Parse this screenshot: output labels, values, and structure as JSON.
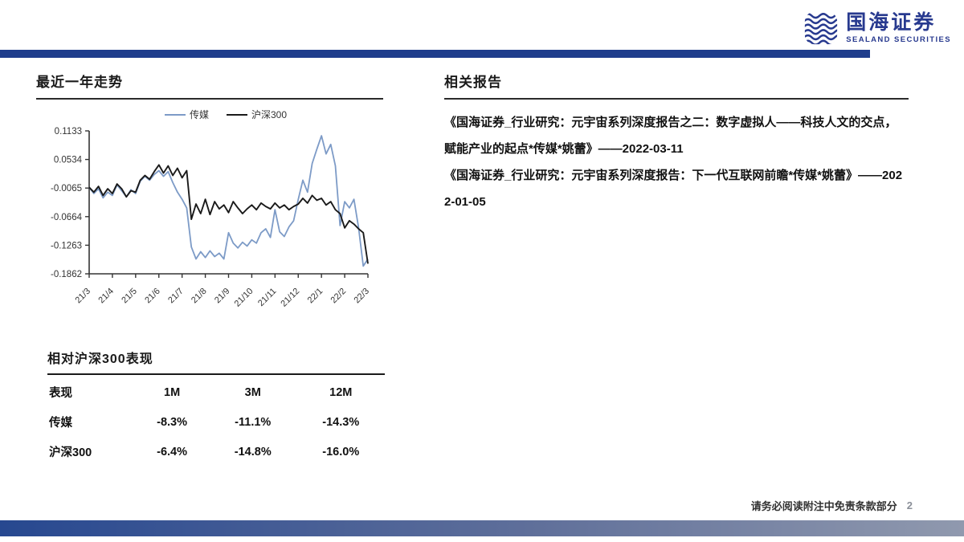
{
  "header": {
    "logo": {
      "icon": "wave-emblem-icon",
      "name_cn": "国海证券",
      "name_en": "SEALAND SECURITIES",
      "brand_color": "#283A8F"
    },
    "bar_color": "#1F3D8C"
  },
  "left": {
    "trend_title": "最近一年走势",
    "table_title": "相对沪深300表现",
    "table": {
      "columns": [
        "表现",
        "1M",
        "3M",
        "12M"
      ],
      "rows": [
        {
          "label": "传媒",
          "values": [
            "-8.3%",
            "-11.1%",
            "-14.3%"
          ]
        },
        {
          "label": "沪深300",
          "values": [
            "-6.4%",
            "-14.8%",
            "-16.0%"
          ]
        }
      ]
    }
  },
  "right": {
    "reports_title": "相关报告",
    "reports": [
      "《国海证券_行业研究：元宇宙系列深度报告之二：数字虚拟人——科技人文的交点，赋能产业的起点*传媒*姚蕾》——2022-03-11",
      "《国海证券_行业研究：元宇宙系列深度报告：下一代互联网前瞻*传媒*姚蕾》——2022-01-05"
    ]
  },
  "footer": {
    "disclaimer": "请务必阅读附注中免责条款部分",
    "page_number": "2",
    "bar_gradient": [
      "#274890",
      "#9099AE"
    ]
  },
  "chart_data": {
    "type": "line",
    "title": "",
    "legend_position": "top",
    "x_tick_labels": [
      "21/3",
      "21/4",
      "21/5",
      "21/6",
      "21/7",
      "21/8",
      "21/9",
      "21/10",
      "21/11",
      "21/12",
      "22/1",
      "22/2",
      "22/3"
    ],
    "y_ticks": [
      0.1133,
      0.0534,
      -0.0065,
      -0.0664,
      -0.1263,
      -0.1862
    ],
    "ylim": [
      -0.1862,
      0.1133
    ],
    "grid": false,
    "series": [
      {
        "name": "传媒",
        "color": "#7D9BC7",
        "values": [
          -0.005,
          -0.018,
          -0.008,
          -0.027,
          -0.015,
          -0.022,
          0.0,
          -0.012,
          -0.025,
          -0.01,
          -0.018,
          0.008,
          0.018,
          0.01,
          0.022,
          0.03,
          0.018,
          0.028,
          0.005,
          -0.015,
          -0.03,
          -0.048,
          -0.13,
          -0.155,
          -0.14,
          -0.152,
          -0.138,
          -0.15,
          -0.143,
          -0.155,
          -0.1,
          -0.122,
          -0.132,
          -0.12,
          -0.128,
          -0.115,
          -0.122,
          -0.1,
          -0.092,
          -0.11,
          -0.052,
          -0.098,
          -0.108,
          -0.088,
          -0.075,
          -0.03,
          0.01,
          -0.015,
          0.045,
          0.075,
          0.103,
          0.065,
          0.085,
          0.04,
          -0.085,
          -0.035,
          -0.048,
          -0.03,
          -0.09,
          -0.17,
          -0.155
        ]
      },
      {
        "name": "沪深300",
        "color": "#1A1A1A",
        "values": [
          -0.005,
          -0.015,
          -0.003,
          -0.022,
          -0.008,
          -0.018,
          0.002,
          -0.008,
          -0.025,
          -0.012,
          -0.015,
          0.01,
          0.02,
          0.012,
          0.028,
          0.042,
          0.025,
          0.04,
          0.02,
          0.035,
          0.015,
          0.03,
          -0.072,
          -0.04,
          -0.06,
          -0.03,
          -0.062,
          -0.035,
          -0.05,
          -0.042,
          -0.058,
          -0.035,
          -0.048,
          -0.06,
          -0.05,
          -0.042,
          -0.052,
          -0.038,
          -0.045,
          -0.05,
          -0.038,
          -0.048,
          -0.042,
          -0.052,
          -0.045,
          -0.04,
          -0.028,
          -0.038,
          -0.022,
          -0.032,
          -0.028,
          -0.042,
          -0.035,
          -0.052,
          -0.06,
          -0.09,
          -0.075,
          -0.082,
          -0.092,
          -0.1,
          -0.165
        ]
      }
    ]
  }
}
